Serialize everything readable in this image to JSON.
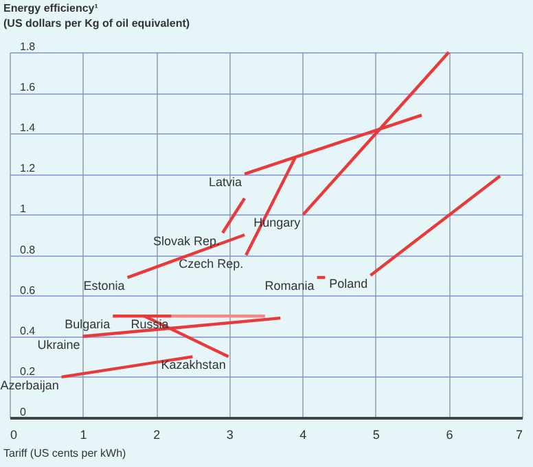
{
  "chart_data": {
    "type": "line",
    "xlabel": "Tariff (US cents per kWh)",
    "ylabel": "Energy efficiency¹\n(US dollars per Kg of oil equivalent)",
    "xlim": [
      0,
      7
    ],
    "xticks": [
      0,
      1,
      2,
      3,
      4,
      5,
      6,
      7
    ],
    "ylim": [
      0,
      1.8
    ],
    "yticks": [
      0,
      0.2,
      0.4,
      0.6,
      0.8,
      1,
      1.2,
      1.4,
      1.6,
      1.8
    ],
    "grid": true,
    "marker": "none",
    "series": [
      {
        "name": "Latvia",
        "color": "#e83a3a",
        "x": [
          3.21,
          5.63
        ],
        "values": [
          1.2,
          1.49
        ]
      },
      {
        "name": "Hungary",
        "color": "#e83a3a",
        "x": [
          4.01,
          6.0
        ],
        "values": [
          1.0,
          1.8
        ]
      },
      {
        "name": "Slovak Rep.",
        "color": "#e83a3a",
        "x": [
          2.91,
          3.21
        ],
        "values": [
          0.91,
          1.08
        ]
      },
      {
        "name": "Czech Rep.",
        "color": "#e83a3a",
        "x": [
          3.23,
          3.9
        ],
        "values": [
          0.8,
          1.28
        ]
      },
      {
        "name": "Estonia",
        "color": "#e83a3a",
        "x": [
          1.61,
          3.21
        ],
        "values": [
          0.69,
          0.9
        ]
      },
      {
        "name": "Romania",
        "color": "#e83a3a",
        "x": [
          4.2,
          4.31
        ],
        "values": [
          0.69,
          0.69
        ]
      },
      {
        "name": "Poland",
        "color": "#e83a3a",
        "x": [
          4.93,
          6.7
        ],
        "values": [
          0.7,
          1.19
        ]
      },
      {
        "name": "Russia",
        "color": "#f28a8a",
        "x": [
          2.21,
          3.49
        ],
        "values": [
          0.5,
          0.5
        ]
      },
      {
        "name": "Bulgaria",
        "color": "#e83a3a",
        "x": [
          1.41,
          2.21
        ],
        "values": [
          0.5,
          0.5
        ]
      },
      {
        "name": "Ukraine",
        "color": "#e83a3a",
        "x": [
          1.0,
          3.7
        ],
        "values": [
          0.4,
          0.49
        ]
      },
      {
        "name": "Kazakhstan",
        "color": "#e83a3a",
        "x": [
          2.99,
          1.84
        ],
        "values": [
          0.3,
          0.5
        ]
      },
      {
        "name": "Azerbaijan",
        "color": "#e83a3a",
        "x": [
          0.71,
          2.5
        ],
        "values": [
          0.2,
          0.3
        ]
      }
    ]
  }
}
